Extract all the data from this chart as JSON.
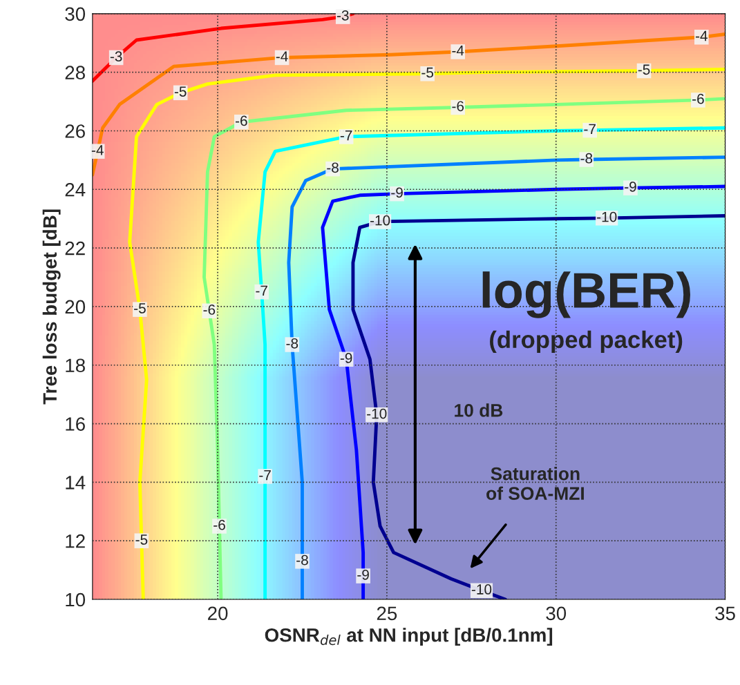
{
  "chart_data": {
    "type": "line",
    "xlabel": "OSNR$_{del}$ at NN input [dB/0.1nm]",
    "ylabel": "Tree loss budget [dB]",
    "xlim": [
      16.3,
      35
    ],
    "ylim": [
      10,
      30
    ],
    "xticks": [
      20,
      25,
      30,
      35
    ],
    "yticks": [
      10,
      12,
      14,
      16,
      18,
      20,
      22,
      24,
      26,
      28,
      30
    ],
    "grid": true,
    "series": [
      {
        "color": "#ff0000",
        "x": [
          16.3,
          17.0,
          17.6,
          20.1,
          23.1,
          23.7,
          24.0
        ],
        "values": [
          27.7,
          28.5,
          29.1,
          29.5,
          29.8,
          29.9,
          30.0
        ]
      },
      {
        "color": "#ff8000",
        "x": [
          16.3,
          16.45,
          16.6,
          17.1,
          18.7,
          21.9,
          25.1,
          27.1,
          30.1,
          34.3,
          35.0
        ],
        "values": [
          24.5,
          25.3,
          26.1,
          26.9,
          28.2,
          28.5,
          28.6,
          28.7,
          28.9,
          29.2,
          29.3
        ]
      },
      {
        "color": "#ffff00",
        "x": [
          17.8,
          17.75,
          17.7,
          17.9,
          17.7,
          17.4,
          17.6,
          18.2,
          18.9,
          19.7,
          21.7,
          26.2,
          27.9,
          32.6,
          35.0
        ],
        "values": [
          10.0,
          12.0,
          14.0,
          17.5,
          19.9,
          22.2,
          25.8,
          26.9,
          27.3,
          27.6,
          27.9,
          27.95,
          28.0,
          28.05,
          28.1
        ]
      },
      {
        "color": "#80ff80",
        "x": [
          20.1,
          20.05,
          20.0,
          19.9,
          19.75,
          19.6,
          19.7,
          19.9,
          20.7,
          23.8,
          27.1,
          30.0,
          34.2,
          35.0
        ],
        "values": [
          10.0,
          12.5,
          15.1,
          18.7,
          19.85,
          21.0,
          24.6,
          25.8,
          26.3,
          26.7,
          26.8,
          26.9,
          27.05,
          27.1
        ]
      },
      {
        "color": "#00ffff",
        "x": [
          21.4,
          21.4,
          21.4,
          21.3,
          21.2,
          21.4,
          21.7,
          23.8,
          30.0,
          31.0,
          35.0
        ],
        "values": [
          10.0,
          14.2,
          18.7,
          20.5,
          22.2,
          24.6,
          25.3,
          25.8,
          26.0,
          26.02,
          26.1
        ]
      },
      {
        "color": "#0080ff",
        "x": [
          22.5,
          22.5,
          22.5,
          22.2,
          22.1,
          22.2,
          22.6,
          23.4,
          30.0,
          30.9,
          35.0
        ],
        "values": [
          10.0,
          11.3,
          14.0,
          18.7,
          21.5,
          23.4,
          24.3,
          24.7,
          25.0,
          25.02,
          25.1
        ]
      },
      {
        "color": "#0000ff",
        "x": [
          24.3,
          24.3,
          24.3,
          24.1,
          23.8,
          23.3,
          23.1,
          23.4,
          24.2,
          25.3,
          30.0,
          32.2,
          35.0
        ],
        "values": [
          10.0,
          10.8,
          11.6,
          15.1,
          18.2,
          19.9,
          22.7,
          23.6,
          23.8,
          23.85,
          24.0,
          24.05,
          24.1
        ]
      },
      {
        "color": "#000090",
        "x": [
          28.5,
          27.8,
          26.9,
          25.2,
          24.8,
          24.6,
          24.7,
          24.5,
          24.0,
          24.0,
          24.2,
          24.8,
          30.0,
          31.5,
          35.0
        ],
        "values": [
          10.0,
          10.3,
          10.7,
          11.6,
          12.5,
          14.0,
          16.3,
          18.2,
          19.9,
          21.5,
          22.7,
          22.9,
          23.0,
          23.02,
          23.1
        ]
      }
    ],
    "annotations": [
      {
        "text": "-3",
        "x": 17.0,
        "y": 28.5
      },
      {
        "text": "-3",
        "x": 23.7,
        "y": 29.9
      },
      {
        "text": "-4",
        "x": 16.45,
        "y": 25.3
      },
      {
        "text": "-4",
        "x": 21.9,
        "y": 28.5
      },
      {
        "text": "-4",
        "x": 27.1,
        "y": 28.7
      },
      {
        "text": "-4",
        "x": 34.3,
        "y": 29.2
      },
      {
        "text": "-5",
        "x": 18.9,
        "y": 27.3
      },
      {
        "text": "-5",
        "x": 26.2,
        "y": 27.95
      },
      {
        "text": "-5",
        "x": 32.6,
        "y": 28.05
      },
      {
        "text": "-5",
        "x": 17.7,
        "y": 19.9
      },
      {
        "text": "-5",
        "x": 17.75,
        "y": 12.0
      },
      {
        "text": "-6",
        "x": 20.7,
        "y": 26.3
      },
      {
        "text": "-6",
        "x": 27.1,
        "y": 26.8
      },
      {
        "text": "-6",
        "x": 34.2,
        "y": 27.05
      },
      {
        "text": "-6",
        "x": 19.75,
        "y": 19.85
      },
      {
        "text": "-6",
        "x": 20.05,
        "y": 12.5
      },
      {
        "text": "-7",
        "x": 23.8,
        "y": 25.8
      },
      {
        "text": "-7",
        "x": 31.0,
        "y": 26.02
      },
      {
        "text": "-7",
        "x": 21.3,
        "y": 20.5
      },
      {
        "text": "-7",
        "x": 21.4,
        "y": 14.2
      },
      {
        "text": "-8",
        "x": 23.4,
        "y": 24.7
      },
      {
        "text": "-8",
        "x": 30.9,
        "y": 25.02
      },
      {
        "text": "-8",
        "x": 22.2,
        "y": 18.7
      },
      {
        "text": "-8",
        "x": 22.5,
        "y": 11.3
      },
      {
        "text": "-9",
        "x": 25.3,
        "y": 23.85
      },
      {
        "text": "-9",
        "x": 32.2,
        "y": 24.05
      },
      {
        "text": "-9",
        "x": 23.8,
        "y": 18.2
      },
      {
        "text": "-9",
        "x": 24.3,
        "y": 10.8
      },
      {
        "text": "-10",
        "x": 24.8,
        "y": 22.9
      },
      {
        "text": "-10",
        "x": 31.5,
        "y": 23.02
      },
      {
        "text": "-10",
        "x": 24.7,
        "y": 16.3
      },
      {
        "text": "-10",
        "x": 27.8,
        "y": 10.3
      },
      "log(BER)",
      "(dropped packet)",
      "10 dB",
      "Saturation\nof SOA-MZI"
    ]
  }
}
